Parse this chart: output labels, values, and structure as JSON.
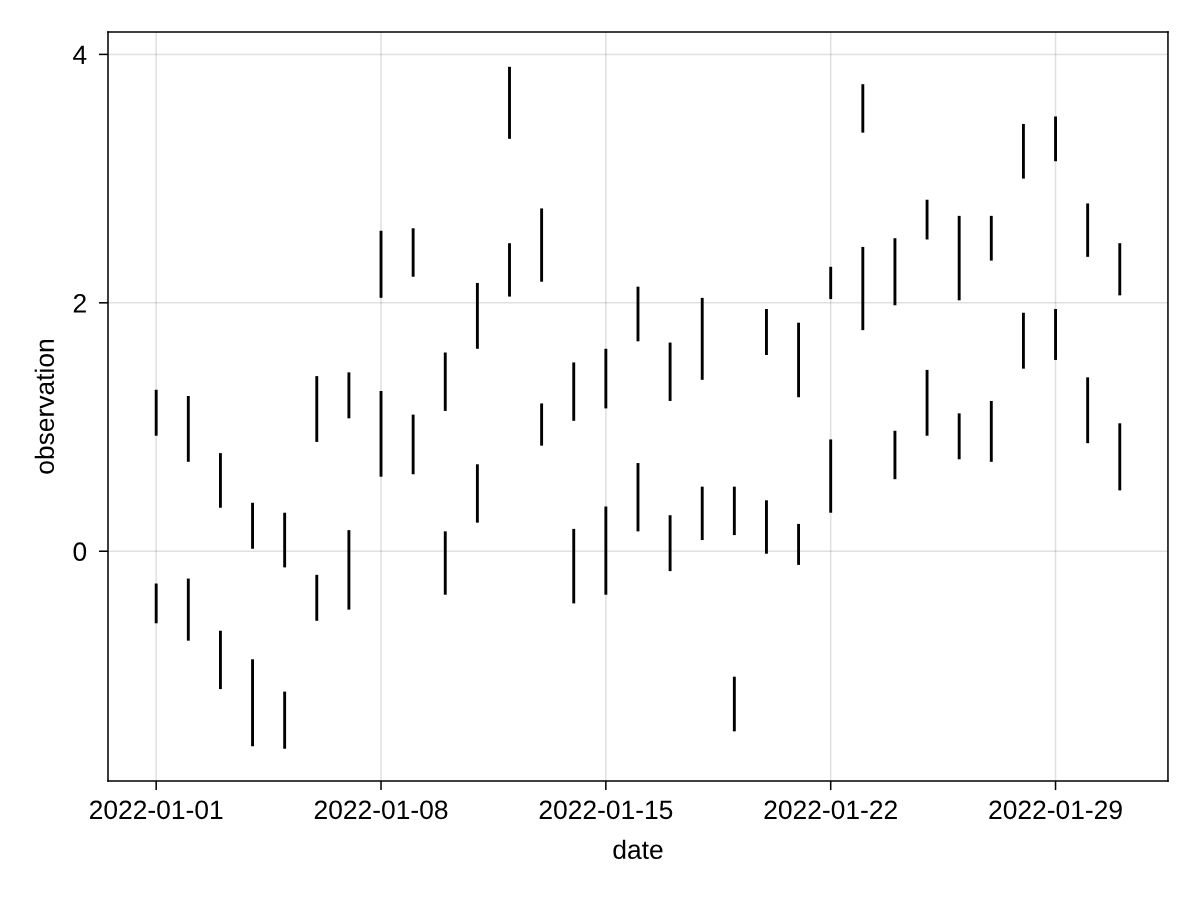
{
  "chart_data": {
    "type": "bar",
    "xlabel": "date",
    "ylabel": "observation",
    "x": [
      "2022-01-01",
      "2022-01-02",
      "2022-01-03",
      "2022-01-04",
      "2022-01-05",
      "2022-01-06",
      "2022-01-07",
      "2022-01-08",
      "2022-01-09",
      "2022-01-10",
      "2022-01-11",
      "2022-01-12",
      "2022-01-13",
      "2022-01-14",
      "2022-01-15",
      "2022-01-16",
      "2022-01-17",
      "2022-01-18",
      "2022-01-19",
      "2022-01-20",
      "2022-01-21",
      "2022-01-22",
      "2022-01-23",
      "2022-01-24",
      "2022-01-25",
      "2022-01-26",
      "2022-01-27",
      "2022-01-28",
      "2022-01-29",
      "2022-01-30",
      "2022-01-31"
    ],
    "series": [
      {
        "color": "#000000",
        "base": [
          0.93,
          0.72,
          0.35,
          0.02,
          -0.13,
          0.88,
          1.07,
          2.04,
          2.21,
          1.13,
          1.63,
          3.32,
          2.17,
          1.05,
          1.15,
          1.69,
          1.21,
          1.38,
          0.13,
          1.58,
          1.24,
          2.03,
          3.37,
          1.98,
          2.51,
          2.02,
          2.34,
          3.0,
          3.14,
          2.37,
          2.06
        ],
        "values": [
          0.37,
          0.53,
          0.44,
          0.37,
          0.44,
          0.53,
          0.37,
          0.54,
          0.39,
          0.47,
          0.53,
          0.58,
          0.59,
          0.47,
          0.48,
          0.44,
          0.47,
          0.66,
          0.39,
          0.37,
          0.6,
          0.26,
          0.39,
          0.54,
          0.32,
          0.68,
          0.36,
          0.44,
          0.36,
          0.43,
          0.42
        ]
      },
      {
        "color": "#000000",
        "base": [
          -0.58,
          -0.72,
          -1.11,
          -1.57,
          -1.59,
          -0.56,
          -0.47,
          0.6,
          0.62,
          -0.35,
          0.23,
          2.05,
          0.85,
          -0.42,
          -0.35,
          0.16,
          -0.16,
          0.09,
          -1.45,
          -0.02,
          -0.11,
          0.31,
          1.78,
          0.58,
          0.93,
          0.74,
          0.72,
          1.47,
          1.54,
          0.87,
          0.49
        ],
        "values": [
          0.32,
          0.5,
          0.47,
          0.7,
          0.46,
          0.37,
          0.64,
          0.69,
          0.48,
          0.51,
          0.47,
          0.43,
          0.34,
          0.6,
          0.71,
          0.55,
          0.45,
          0.43,
          0.44,
          0.43,
          0.33,
          0.59,
          0.67,
          0.39,
          0.53,
          0.37,
          0.49,
          0.45,
          0.41,
          0.53,
          0.54
        ]
      }
    ],
    "xlim": [
      "2021-12-30T12:00",
      "2022-02-01T12:00"
    ],
    "xticks": [
      "2022-01-01",
      "2022-01-08",
      "2022-01-15",
      "2022-01-22",
      "2022-01-29"
    ],
    "ylim": [
      -1.85,
      4.18
    ],
    "yticks": [
      0,
      2,
      4
    ],
    "grid": true
  }
}
